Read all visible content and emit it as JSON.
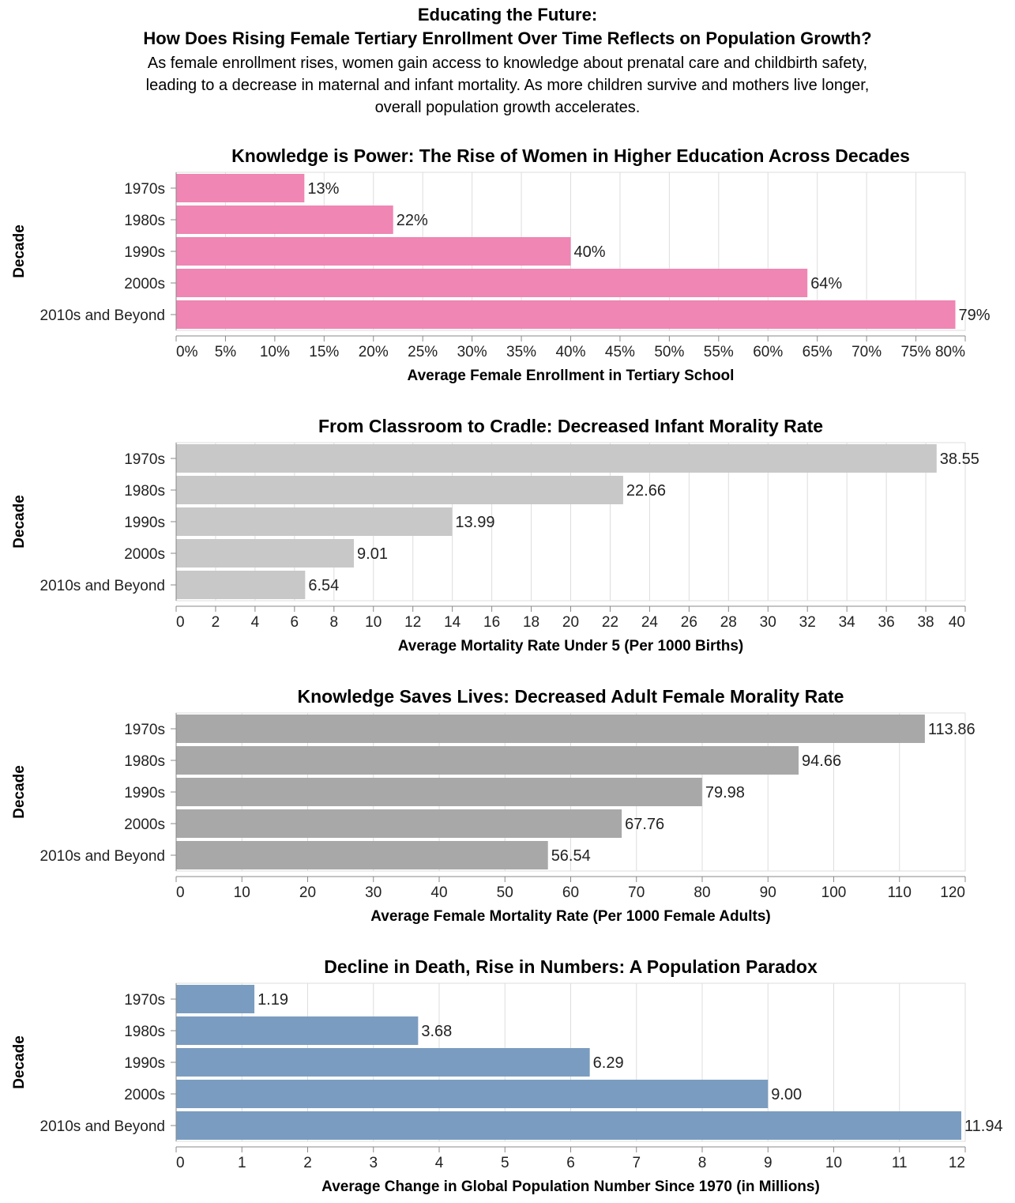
{
  "header": {
    "title_line1": "Educating the Future:",
    "title_line2": "How Does Rising Female Tertiary Enrollment Over Time Reflects on Population Growth?",
    "subtitle_line1": "As female enrollment rises, women gain access to knowledge about prenatal care and childbirth safety,",
    "subtitle_line2": "leading to a decrease in maternal and infant mortality. As more children survive and mothers live longer,",
    "subtitle_line3": "overall population growth accelerates."
  },
  "chart_data": [
    {
      "type": "bar",
      "orientation": "horizontal",
      "title": "Knowledge is Power: The Rise of Women in Higher Education Across Decades",
      "xlabel": "Average Female Enrollment in Tertiary School",
      "ylabel": "Decade",
      "categories": [
        "1970s",
        "1980s",
        "1990s",
        "2000s",
        "2010s and Beyond"
      ],
      "values": [
        13,
        22,
        40,
        64,
        79
      ],
      "value_labels": [
        "13%",
        "22%",
        "40%",
        "64%",
        "79%"
      ],
      "xlim": [
        0,
        80
      ],
      "ticks": [
        0,
        5,
        10,
        15,
        20,
        25,
        30,
        35,
        40,
        45,
        50,
        55,
        60,
        65,
        70,
        75,
        80
      ],
      "tick_labels": [
        "0%",
        "5%",
        "10%",
        "15%",
        "20%",
        "25%",
        "30%",
        "35%",
        "40%",
        "45%",
        "50%",
        "55%",
        "60%",
        "65%",
        "70%",
        "75%",
        "80%"
      ],
      "color": "#ef86b3",
      "grid": true
    },
    {
      "type": "bar",
      "orientation": "horizontal",
      "title": "From Classroom to Cradle: Decreased Infant Morality Rate",
      "xlabel": "Average Mortality Rate Under 5 (Per 1000 Births)",
      "ylabel": "Decade",
      "categories": [
        "1970s",
        "1980s",
        "1990s",
        "2000s",
        "2010s and Beyond"
      ],
      "values": [
        38.55,
        22.66,
        13.99,
        9.01,
        6.54
      ],
      "value_labels": [
        "38.55",
        "22.66",
        "13.99",
        "9.01",
        "6.54"
      ],
      "xlim": [
        0,
        40
      ],
      "ticks": [
        0,
        2,
        4,
        6,
        8,
        10,
        12,
        14,
        16,
        18,
        20,
        22,
        24,
        26,
        28,
        30,
        32,
        34,
        36,
        38,
        40
      ],
      "tick_labels": [
        "0",
        "2",
        "4",
        "6",
        "8",
        "10",
        "12",
        "14",
        "16",
        "18",
        "20",
        "22",
        "24",
        "26",
        "28",
        "30",
        "32",
        "34",
        "36",
        "38",
        "40"
      ],
      "color": "#c8c8c8",
      "grid": true
    },
    {
      "type": "bar",
      "orientation": "horizontal",
      "title": "Knowledge Saves Lives: Decreased Adult Female Morality Rate",
      "xlabel": "Average Female Mortality Rate (Per 1000 Female Adults)",
      "ylabel": "Decade",
      "categories": [
        "1970s",
        "1980s",
        "1990s",
        "2000s",
        "2010s and Beyond"
      ],
      "values": [
        113.86,
        94.66,
        79.98,
        67.76,
        56.54
      ],
      "value_labels": [
        "113.86",
        "94.66",
        "79.98",
        "67.76",
        "56.54"
      ],
      "xlim": [
        0,
        120
      ],
      "ticks": [
        0,
        10,
        20,
        30,
        40,
        50,
        60,
        70,
        80,
        90,
        100,
        110,
        120
      ],
      "tick_labels": [
        "0",
        "10",
        "20",
        "30",
        "40",
        "50",
        "60",
        "70",
        "80",
        "90",
        "100",
        "110",
        "120"
      ],
      "color": "#a8a8a8",
      "grid": true
    },
    {
      "type": "bar",
      "orientation": "horizontal",
      "title": "Decline in Death, Rise in Numbers: A Population Paradox",
      "xlabel": "Average Change in Global Population Number Since 1970 (in Millions)",
      "ylabel": "Decade",
      "categories": [
        "1970s",
        "1980s",
        "1990s",
        "2000s",
        "2010s and Beyond"
      ],
      "values": [
        1.19,
        3.68,
        6.29,
        9.0,
        11.94
      ],
      "value_labels": [
        "1.19",
        "3.68",
        "6.29",
        "9.00",
        "11.94"
      ],
      "xlim": [
        0,
        12
      ],
      "ticks": [
        0,
        1,
        2,
        3,
        4,
        5,
        6,
        7,
        8,
        9,
        10,
        11,
        12
      ],
      "tick_labels": [
        "0",
        "1",
        "2",
        "3",
        "4",
        "5",
        "6",
        "7",
        "8",
        "9",
        "10",
        "11",
        "12"
      ],
      "color": "#7a9cc0",
      "grid": true
    }
  ]
}
